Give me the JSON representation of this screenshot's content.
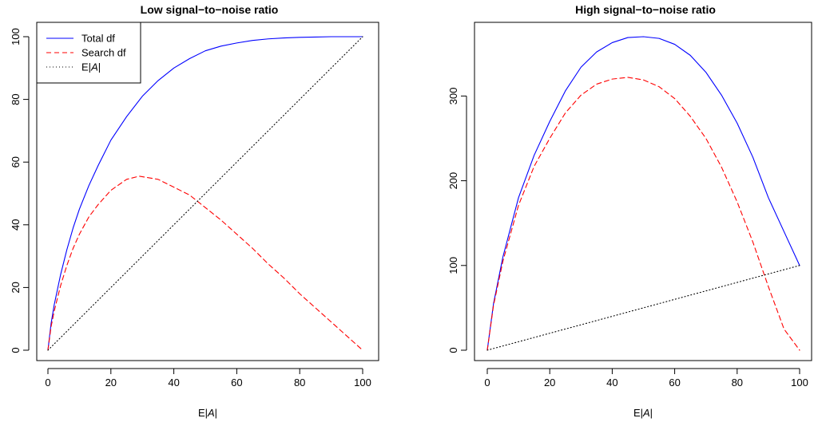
{
  "chart_data": [
    {
      "type": "line",
      "title": "Low signal−to−noise ratio",
      "xlabel": "E|A|",
      "ylabel": "",
      "xlim": [
        0,
        100
      ],
      "ylim": [
        0,
        100
      ],
      "xticks": [
        0,
        20,
        40,
        60,
        80,
        100
      ],
      "yticks": [
        0,
        20,
        40,
        60,
        80,
        100
      ],
      "grid": false,
      "legend_position": "top-left",
      "series": [
        {
          "name": "Total df",
          "color": "#0000ff",
          "dash": "solid",
          "x": [
            0,
            1,
            2,
            4,
            6,
            8,
            10,
            13,
            16,
            20,
            25,
            30,
            35,
            40,
            45,
            50,
            55,
            60,
            65,
            70,
            75,
            80,
            85,
            90,
            95,
            100
          ],
          "y": [
            0,
            8.5,
            14.5,
            24,
            32,
            39,
            45,
            52.5,
            59,
            67,
            74.5,
            81,
            86,
            90,
            93,
            95.5,
            97,
            98,
            98.8,
            99.3,
            99.6,
            99.8,
            99.9,
            100,
            100,
            100
          ]
        },
        {
          "name": "Search df",
          "color": "#ff0000",
          "dash": "dashed",
          "x": [
            0,
            1,
            2,
            4,
            6,
            8,
            10,
            13,
            16,
            20,
            25,
            29,
            35,
            40,
            45,
            50,
            55,
            60,
            65,
            70,
            75,
            80,
            85,
            90,
            95,
            100
          ],
          "y": [
            0,
            7.5,
            12.5,
            20.5,
            27,
            32.5,
            37,
            42.5,
            46.5,
            51,
            54.5,
            55.5,
            54.5,
            52,
            49.5,
            45.5,
            41.5,
            37,
            32.5,
            27.5,
            23,
            18,
            13.5,
            9,
            4.5,
            0
          ]
        },
        {
          "name": "E|A|",
          "color": "#000000",
          "dash": "dotted",
          "x": [
            0,
            100
          ],
          "y": [
            0,
            100
          ]
        }
      ]
    },
    {
      "type": "line",
      "title": "High signal−to−noise ratio",
      "xlabel": "E|A|",
      "ylabel": "",
      "xlim": [
        0,
        100
      ],
      "ylim": [
        0,
        370
      ],
      "xticks": [
        0,
        20,
        40,
        60,
        80,
        100
      ],
      "yticks": [
        0,
        100,
        200,
        300
      ],
      "grid": false,
      "series": [
        {
          "color": "#0000ff",
          "dash": "solid",
          "x": [
            0,
            2,
            5,
            10,
            15,
            20,
            25,
            30,
            35,
            40,
            45,
            50,
            55,
            60,
            65,
            70,
            75,
            80,
            85,
            90,
            95,
            100
          ],
          "y": [
            0,
            55,
            110,
            180,
            230,
            270,
            306,
            334,
            352,
            363,
            369,
            370,
            368,
            361,
            348,
            328,
            301,
            268,
            228,
            180,
            140,
            100
          ]
        },
        {
          "color": "#ff0000",
          "dash": "dashed",
          "x": [
            0,
            2,
            5,
            10,
            15,
            20,
            25,
            30,
            35,
            40,
            45,
            50,
            55,
            60,
            65,
            70,
            75,
            80,
            85,
            90,
            95,
            100
          ],
          "y": [
            0,
            53,
            105,
            171,
            217,
            250,
            280,
            301,
            314,
            320,
            322,
            319,
            311,
            297,
            276,
            250,
            216,
            175,
            128,
            75,
            25,
            0
          ]
        },
        {
          "color": "#000000",
          "dash": "dotted",
          "x": [
            0,
            100
          ],
          "y": [
            0,
            100
          ]
        }
      ]
    }
  ]
}
